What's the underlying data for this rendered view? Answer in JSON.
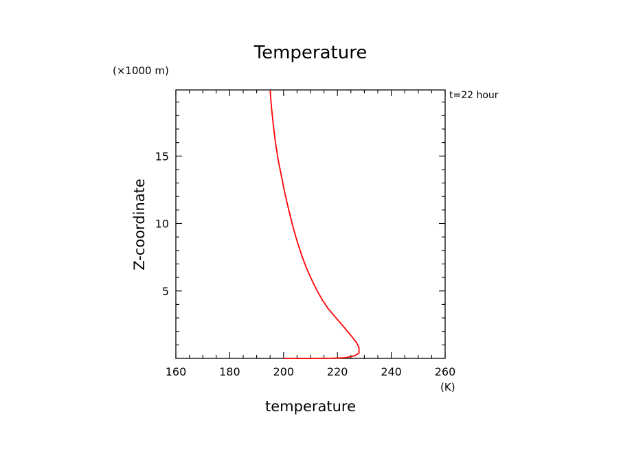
{
  "chart_data": {
    "type": "line",
    "title": "Temperature",
    "xlabel": "temperature",
    "ylabel": "Z-coordinate",
    "x_unit": "(K)",
    "y_unit": "(×1000 m)",
    "annotation": "t=22 hour",
    "xlim": [
      160,
      260
    ],
    "ylim": [
      0,
      19.9
    ],
    "x_ticks": [
      160,
      180,
      200,
      220,
      240,
      260
    ],
    "y_ticks": [
      5,
      10,
      15
    ],
    "grid": false,
    "series": [
      {
        "color": "#ff0000",
        "points": [
          [
            200.0,
            0.0
          ],
          [
            210.0,
            0.0
          ],
          [
            218.0,
            0.01
          ],
          [
            223.0,
            0.05
          ],
          [
            226.5,
            0.2
          ],
          [
            228.0,
            0.4
          ],
          [
            228.0,
            0.8
          ],
          [
            227.0,
            1.2
          ],
          [
            225.0,
            1.7
          ],
          [
            222.5,
            2.3
          ],
          [
            219.5,
            3.0
          ],
          [
            216.5,
            3.7
          ],
          [
            214.5,
            4.3
          ],
          [
            212.5,
            5.0
          ],
          [
            210.5,
            5.8
          ],
          [
            208.5,
            6.7
          ],
          [
            206.8,
            7.6
          ],
          [
            205.0,
            8.7
          ],
          [
            203.3,
            9.9
          ],
          [
            201.8,
            11.1
          ],
          [
            200.4,
            12.3
          ],
          [
            199.2,
            13.5
          ],
          [
            198.0,
            14.7
          ],
          [
            197.0,
            16.0
          ],
          [
            196.2,
            17.3
          ],
          [
            195.5,
            18.6
          ],
          [
            195.0,
            19.9
          ]
        ]
      }
    ]
  }
}
